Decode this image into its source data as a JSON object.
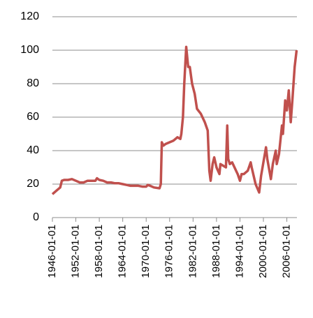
{
  "chart_data": {
    "type": "line",
    "x": [
      "1946-01-01",
      "1947-01-01",
      "1948-01-01",
      "1948-06-01",
      "1949-01-01",
      "1950-01-01",
      "1951-01-01",
      "1952-01-01",
      "1953-01-01",
      "1954-01-01",
      "1955-01-01",
      "1956-01-01",
      "1957-01-01",
      "1957-06-01",
      "1958-01-01",
      "1959-01-01",
      "1960-01-01",
      "1961-01-01",
      "1962-01-01",
      "1963-01-01",
      "1964-01-01",
      "1965-01-01",
      "1966-01-01",
      "1967-01-01",
      "1968-01-01",
      "1969-01-01",
      "1970-01-01",
      "1970-06-01",
      "1971-01-01",
      "1972-01-01",
      "1973-06-01",
      "1973-10-01",
      "1974-01-01",
      "1974-06-01",
      "1975-01-01",
      "1976-01-01",
      "1977-01-01",
      "1978-01-01",
      "1978-10-01",
      "1979-01-01",
      "1979-06-01",
      "1979-10-01",
      "1980-04-01",
      "1980-10-01",
      "1981-03-01",
      "1981-10-01",
      "1982-06-01",
      "1983-01-01",
      "1984-01-01",
      "1985-01-01",
      "1985-10-01",
      "1986-03-01",
      "1986-07-01",
      "1987-01-01",
      "1987-06-01",
      "1988-01-01",
      "1988-10-01",
      "1989-01-01",
      "1990-06-01",
      "1990-10-01",
      "1991-01-01",
      "1991-06-01",
      "1992-01-01",
      "1993-01-01",
      "1993-06-01",
      "1994-01-01",
      "1994-06-01",
      "1995-01-01",
      "1996-01-01",
      "1996-10-01",
      "1997-01-01",
      "1998-01-01",
      "1998-12-01",
      "1999-06-01",
      "2000-01-01",
      "2000-09-01",
      "2001-01-01",
      "2001-12-01",
      "2002-06-01",
      "2003-03-01",
      "2003-06-01",
      "2004-01-01",
      "2004-10-01",
      "2005-01-01",
      "2005-08-01",
      "2006-01-01",
      "2006-07-01",
      "2007-01-01",
      "2007-06-01",
      "2008-01-01",
      "2008-07-01"
    ],
    "series": [
      {
        "color": "#c0504d",
        "values": [
          14,
          16,
          18,
          22,
          22.5,
          22.5,
          23,
          22,
          21,
          21,
          22,
          22,
          22,
          23.5,
          22.5,
          22,
          21,
          21,
          20.5,
          20.5,
          20,
          19.5,
          19,
          19,
          19,
          18.5,
          18.5,
          19.5,
          19,
          18,
          17.5,
          20,
          45,
          43,
          44,
          45,
          46,
          48,
          47,
          50,
          60,
          80,
          102,
          90,
          90,
          80,
          74,
          65,
          62,
          57,
          52,
          28,
          22,
          32,
          36,
          30,
          26,
          32,
          30,
          55,
          35,
          32,
          33,
          28,
          26,
          22,
          26,
          26,
          28,
          33,
          30,
          20,
          15,
          25,
          33,
          42,
          35,
          23,
          32,
          40,
          32,
          38,
          55,
          50,
          70,
          64,
          76,
          57,
          70,
          90,
          100
        ]
      }
    ],
    "xlim": [
      "1946-01-01",
      "2008-08-01"
    ],
    "xticks": [
      "1946-01-01",
      "1952-01-01",
      "1958-01-01",
      "1964-01-01",
      "1970-01-01",
      "1976-01-01",
      "1982-01-01",
      "1988-01-01",
      "1994-01-01",
      "2000-01-01",
      "2006-01-01"
    ],
    "ylim": [
      0,
      120
    ],
    "yticks": [
      0,
      20,
      40,
      60,
      80,
      100,
      120
    ],
    "grid": true
  }
}
